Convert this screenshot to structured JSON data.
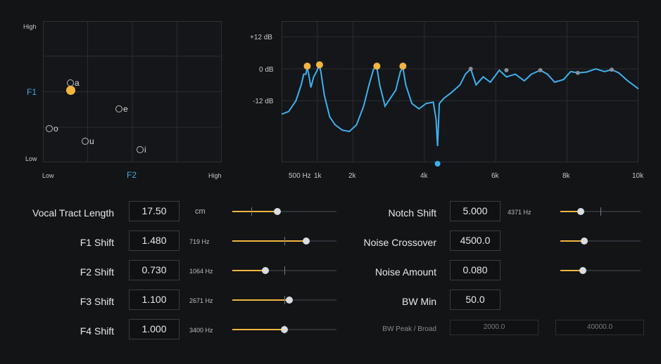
{
  "vowel_chart": {
    "y_high": "High",
    "y_low": "Low",
    "y_axis": "F1",
    "x_low": "Low",
    "x_high": "High",
    "x_axis": "F2",
    "vowels": [
      {
        "label": "a"
      },
      {
        "label": "e"
      },
      {
        "label": "o"
      },
      {
        "label": "u"
      },
      {
        "label": "i"
      }
    ]
  },
  "chart_data": {
    "type": "line",
    "title": "",
    "xlabel": "",
    "ylabel": "",
    "y_tick_labels": [
      "+12 dB",
      "0 dB",
      "-12 dB"
    ],
    "x_tick_labels": [
      "500 Hz",
      "1k",
      "2k",
      "4k",
      "6k",
      "8k",
      "10k"
    ],
    "ylim": [
      -30,
      16
    ],
    "grid": true,
    "series": [
      {
        "color": "#3fb0ee",
        "x": [
          0,
          200,
          400,
          550,
          620,
          680,
          719,
          760,
          820,
          900,
          980,
          1030,
          1064,
          1100,
          1200,
          1350,
          1500,
          1700,
          1900,
          2100,
          2300,
          2450,
          2580,
          2671,
          2750,
          2900,
          3050,
          3200,
          3330,
          3400,
          3480,
          3650,
          3850,
          4050,
          4250,
          4330,
          4371,
          4420,
          4550,
          4750,
          5000,
          5150,
          5300,
          5450,
          5650,
          5850,
          6100,
          6300,
          6550,
          6800,
          7000,
          7250,
          7450,
          7650,
          7900,
          8100,
          8300,
          8550,
          8800,
          9050,
          9250,
          9450,
          9700,
          10000
        ],
        "y": [
          -17,
          -16,
          -12,
          -6,
          -2,
          -2,
          0.5,
          -2,
          -7,
          -3,
          -1,
          0.5,
          1,
          -1,
          -10,
          -18,
          -21,
          -23,
          -23.5,
          -21,
          -14,
          -6,
          0,
          0.5,
          -6,
          -14,
          -11,
          -8,
          -1,
          0.5,
          -6,
          -13,
          -15,
          -13,
          -12.5,
          -19,
          -29,
          -13,
          -11,
          -9,
          -6,
          -2,
          0,
          -6,
          -3,
          -5,
          -0.5,
          -3,
          -2,
          -4.5,
          -2,
          -0.5,
          -2,
          -5,
          -4,
          -1,
          -1.5,
          -1.2,
          0,
          -1,
          -0.3,
          -1.5,
          -4.5,
          -7.5
        ]
      }
    ],
    "formant_markers": [
      {
        "x": 719,
        "y": 0.5
      },
      {
        "x": 1064,
        "y": 1
      },
      {
        "x": 2671,
        "y": 0.5
      },
      {
        "x": 3400,
        "y": 0.5
      }
    ],
    "grey_markers": [
      {
        "x": 5300,
        "y": 0
      },
      {
        "x": 6300,
        "y": -0.5
      },
      {
        "x": 7250,
        "y": -0.5
      },
      {
        "x": 8300,
        "y": -1.5
      },
      {
        "x": 9250,
        "y": -0.3
      }
    ],
    "notch_marker": {
      "x": 4371
    }
  },
  "params_left": [
    {
      "label": "Vocal Tract Length",
      "value": "17.50",
      "unit": "cm",
      "slider": 0.43,
      "tick": 0.18
    },
    {
      "label": "F1 Shift",
      "value": "1.480",
      "unit": "719 Hz",
      "slider": 0.71,
      "tick": 0.5
    },
    {
      "label": "F2 Shift",
      "value": "0.730",
      "unit": "1064 Hz",
      "slider": 0.32,
      "tick": 0.5
    },
    {
      "label": "F3 Shift",
      "value": "1.100",
      "unit": "2671 Hz",
      "slider": 0.55,
      "tick": 0.5
    },
    {
      "label": "F4 Shift",
      "value": "1.000",
      "unit": "3400 Hz",
      "slider": 0.5,
      "tick": 0.5
    }
  ],
  "params_right": [
    {
      "label": "Notch Shift",
      "value": "5.000",
      "unit": "4371 Hz",
      "slider": 0.25,
      "tick": 0.5
    },
    {
      "label": "Noise Crossover",
      "value": "4500.0",
      "unit": "",
      "slider": 0.3
    },
    {
      "label": "Noise Amount",
      "value": "0.080",
      "unit": "",
      "slider": 0.28
    },
    {
      "label": "BW Min",
      "value": "50.0",
      "unit": ""
    }
  ],
  "bw_peak": {
    "label": "BW Peak / Broad",
    "value1": "2000.0",
    "value2": "40000.0"
  }
}
